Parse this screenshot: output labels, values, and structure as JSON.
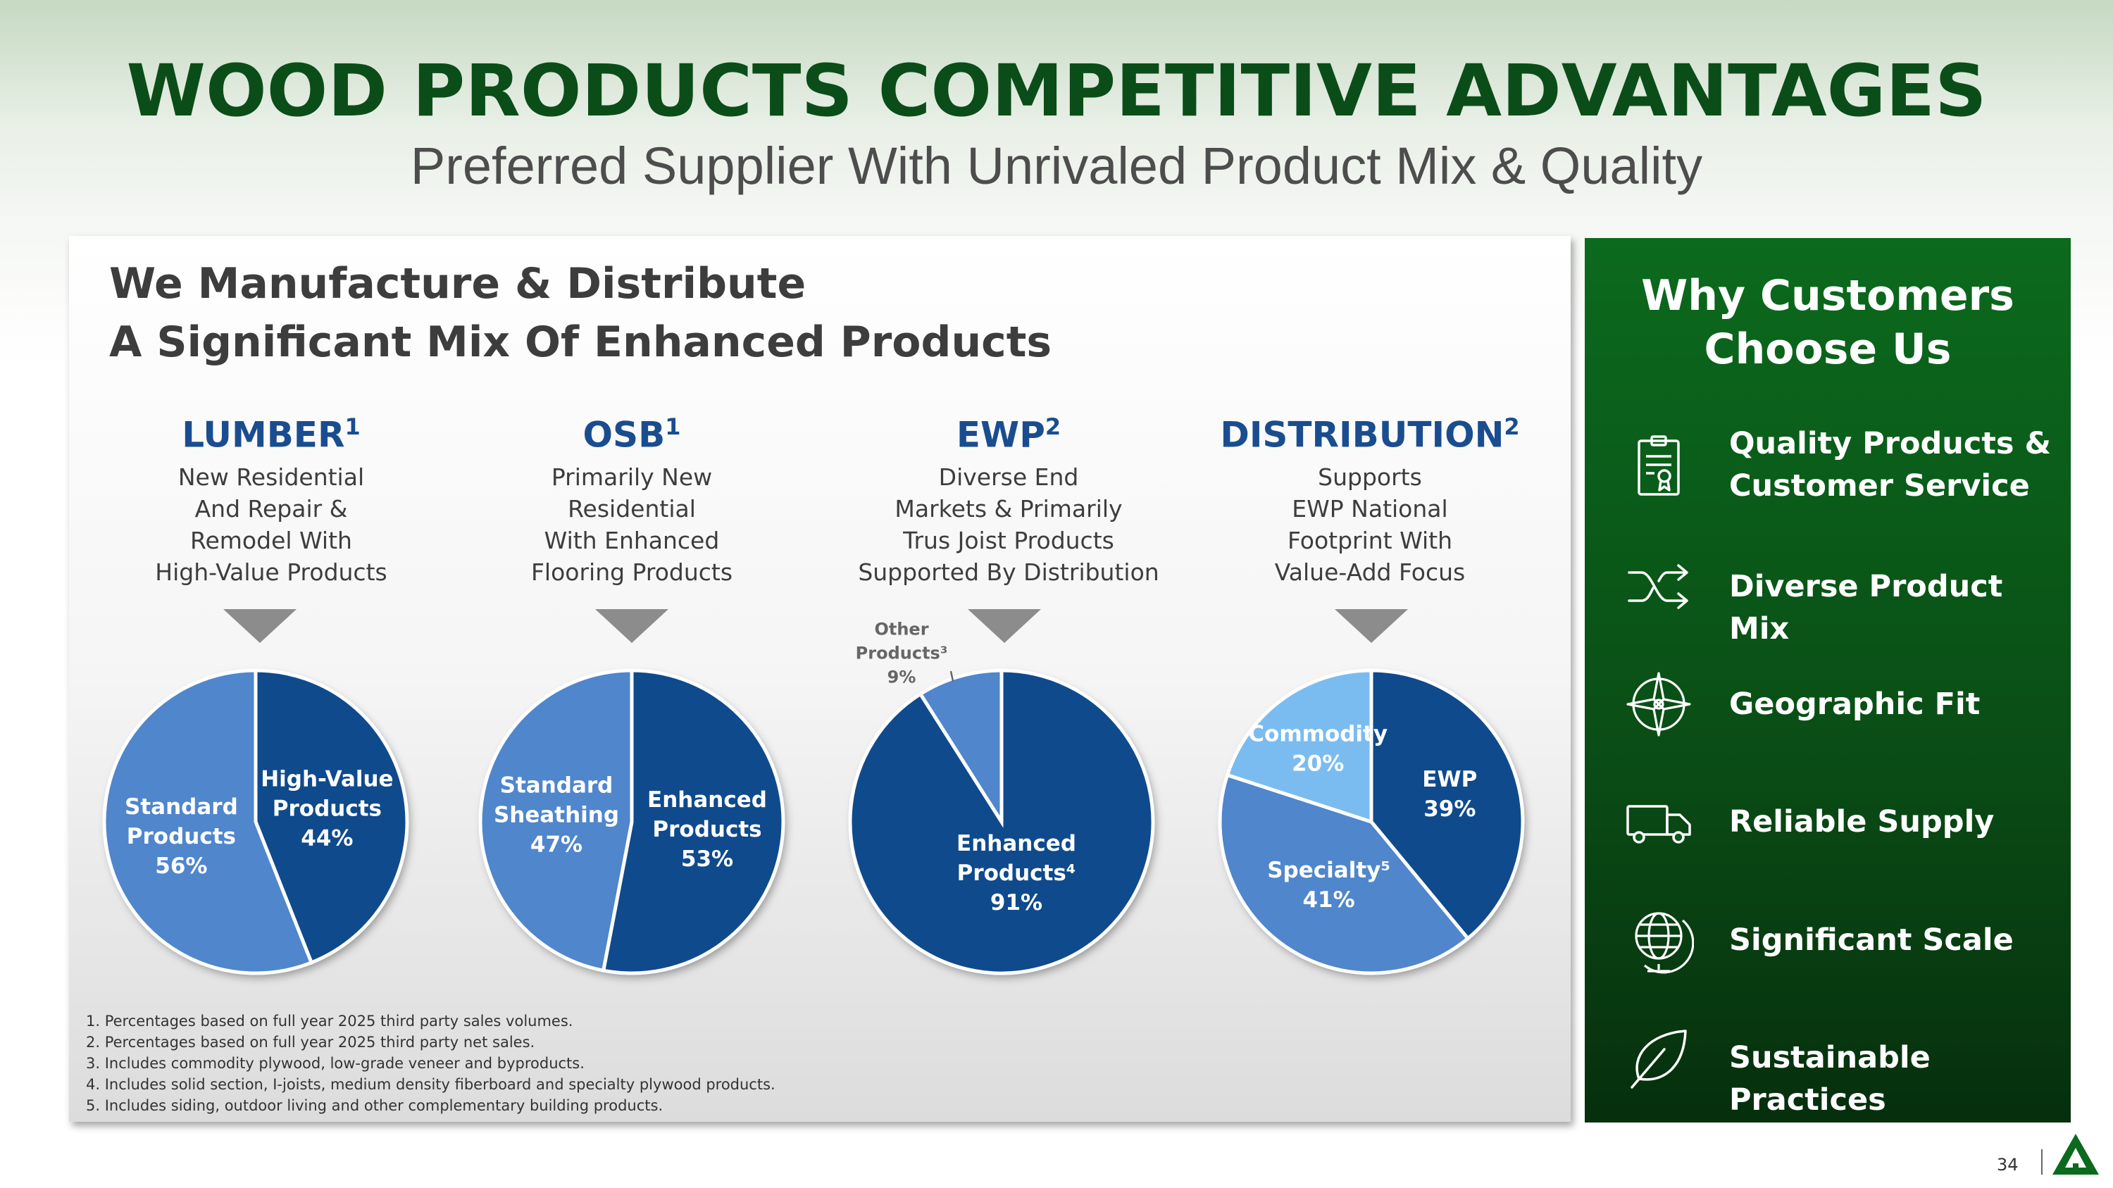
{
  "header": {
    "title": "WOOD PRODUCTS COMPETITIVE ADVANTAGES",
    "subtitle": "Preferred Supplier With Unrivaled Product Mix & Quality"
  },
  "panel": {
    "title_line1": "We Manufacture & Distribute",
    "title_line2": "A Significant Mix Of Enhanced Products"
  },
  "segments": [
    {
      "name": "LUMBER",
      "sup": "1",
      "desc": [
        "New Residential",
        "And Repair &",
        "Remodel With",
        "High-Value Products"
      ]
    },
    {
      "name": "OSB",
      "sup": "1",
      "desc": [
        "Primarily New",
        "Residential",
        "With Enhanced",
        "Flooring Products"
      ]
    },
    {
      "name": "EWP",
      "sup": "2",
      "desc": [
        "Diverse End",
        "Markets & Primarily",
        "Trus Joist Products",
        "Supported By Distribution"
      ]
    },
    {
      "name": "DISTRIBUTION",
      "sup": "2",
      "desc": [
        "Supports",
        "EWP National",
        "Footprint With",
        "Value-Add Focus"
      ]
    }
  ],
  "chart_data": [
    {
      "type": "pie",
      "title": "LUMBER",
      "slices": [
        {
          "label": [
            "High-Value",
            "Products"
          ],
          "value": 44,
          "display": "44%",
          "color": "#0f4a8c"
        },
        {
          "label": [
            "Standard",
            "Products"
          ],
          "value": 56,
          "display": "56%",
          "color": "#4f86cc"
        }
      ]
    },
    {
      "type": "pie",
      "title": "OSB",
      "slices": [
        {
          "label": [
            "Enhanced",
            "Products"
          ],
          "value": 53,
          "display": "53%",
          "color": "#0f4a8c"
        },
        {
          "label": [
            "Standard",
            "Sheathing"
          ],
          "value": 47,
          "display": "47%",
          "color": "#4f86cc"
        }
      ]
    },
    {
      "type": "pie",
      "title": "EWP",
      "slices": [
        {
          "label": [
            "Enhanced",
            "Products⁴"
          ],
          "value": 91,
          "display": "91%",
          "color": "#0f4a8c"
        },
        {
          "label": [
            "Other",
            "Products³"
          ],
          "value": 9,
          "display": "9%",
          "color": "#4f86cc",
          "outside": true
        }
      ]
    },
    {
      "type": "pie",
      "title": "DISTRIBUTION",
      "slices": [
        {
          "label": [
            "EWP"
          ],
          "value": 39,
          "display": "39%",
          "color": "#0f4a8c"
        },
        {
          "label": [
            "Specialty⁵"
          ],
          "value": 41,
          "display": "41%",
          "color": "#4f86cc"
        },
        {
          "label": [
            "Commodity"
          ],
          "value": 20,
          "display": "20%",
          "color": "#7bbcf0"
        }
      ]
    }
  ],
  "footnotes": [
    "1.  Percentages based on full year 2025 third party sales volumes.",
    "2.  Percentages based on full year 2025 third party net sales.",
    "3.  Includes commodity plywood, low-grade veneer and byproducts.",
    "4.  Includes solid section, I-joists, medium density fiberboard and specialty plywood products.",
    "5.  Includes siding, outdoor living and other complementary building products."
  ],
  "sidebar": {
    "title_line1": "Why Customers",
    "title_line2": "Choose Us",
    "items": [
      {
        "line1": "Quality Products &",
        "line2": "Customer Service",
        "icon": "certificate-icon"
      },
      {
        "line1": "Diverse Product Mix",
        "line2": "",
        "icon": "shuffle-icon"
      },
      {
        "line1": "Geographic Fit",
        "line2": "",
        "icon": "compass-icon"
      },
      {
        "line1": "Reliable Supply",
        "line2": "",
        "icon": "truck-icon"
      },
      {
        "line1": "Significant Scale",
        "line2": "",
        "icon": "globe-icon"
      },
      {
        "line1": "Sustainable Practices",
        "line2": "",
        "icon": "leaf-icon"
      }
    ]
  },
  "footer": {
    "page_number": "34",
    "logo_icon": "tree-logo-icon"
  }
}
